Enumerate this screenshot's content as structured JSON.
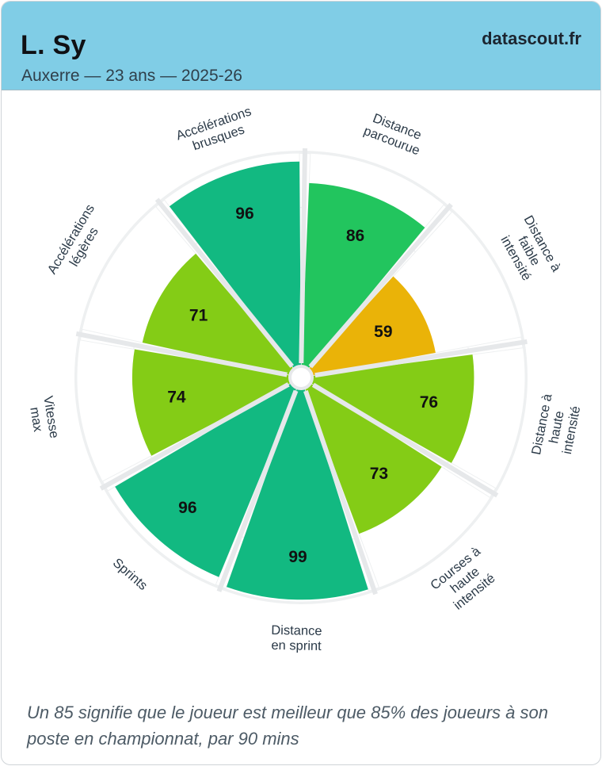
{
  "header": {
    "player_name": "L. Sy",
    "subtitle": "Auxerre — 23 ans — 2025-26",
    "brand": "datascout.fr"
  },
  "footnote": "Un 85 signifie que le joueur est meilleur que 85% des joueurs à son poste en championnat, par 90 mins",
  "colors": {
    "header_bg": "#80cde6",
    "elite": "#12b981",
    "high": "#22c55e",
    "good": "#84cc16",
    "average": "#eab308"
  },
  "chart_data": {
    "type": "polar-bar",
    "title": "L. Sy",
    "value_max": 100,
    "categories": [
      {
        "label": [
          "Distance",
          "parcourue"
        ],
        "value": 86,
        "color": "#22c55e"
      },
      {
        "label": [
          "Distance à",
          "faible",
          "intensité"
        ],
        "value": 59,
        "color": "#eab308"
      },
      {
        "label": [
          "Distance à",
          "haute",
          "intensité"
        ],
        "value": 76,
        "color": "#84cc16"
      },
      {
        "label": [
          "Courses à",
          "haute",
          "intensité"
        ],
        "value": 73,
        "color": "#84cc16"
      },
      {
        "label": [
          "Distance",
          "en sprint"
        ],
        "value": 99,
        "color": "#12b981"
      },
      {
        "label": [
          "Sprints"
        ],
        "value": 96,
        "color": "#12b981"
      },
      {
        "label": [
          "Vitesse",
          "max"
        ],
        "value": 74,
        "color": "#84cc16"
      },
      {
        "label": [
          "Accélérations",
          "légères"
        ],
        "value": 71,
        "color": "#84cc16"
      },
      {
        "label": [
          "Accélérations",
          "brusques"
        ],
        "value": 96,
        "color": "#12b981"
      }
    ]
  }
}
